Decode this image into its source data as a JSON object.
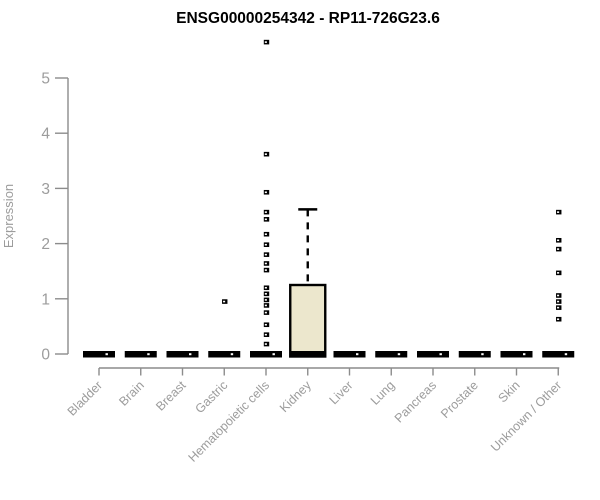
{
  "chart_data": {
    "type": "boxplot",
    "title": "ENSG00000254342 - RP11-726G23.6",
    "ylabel": "Expression",
    "xlabel": "",
    "ylim": [
      0,
      5
    ],
    "yticks": [
      0,
      1,
      2,
      3,
      4,
      5
    ],
    "grid": false,
    "legend": false,
    "categories": [
      "Bladder",
      "Brain",
      "Breast",
      "Gastric",
      "Hematopoietic cells",
      "Kidney",
      "Liver",
      "Lung",
      "Pancreas",
      "Prostate",
      "Skin",
      "Unknown / Other"
    ],
    "boxes": [
      {
        "category": "Bladder",
        "q1": 0,
        "median": 0,
        "q3": 0,
        "whisker_low": 0,
        "whisker_high": 0,
        "outliers": []
      },
      {
        "category": "Brain",
        "q1": 0,
        "median": 0,
        "q3": 0,
        "whisker_low": 0,
        "whisker_high": 0,
        "outliers": []
      },
      {
        "category": "Breast",
        "q1": 0,
        "median": 0,
        "q3": 0,
        "whisker_low": 0,
        "whisker_high": 0,
        "outliers": []
      },
      {
        "category": "Gastric",
        "q1": 0,
        "median": 0,
        "q3": 0,
        "whisker_low": 0,
        "whisker_high": 0,
        "outliers": [
          0.95
        ]
      },
      {
        "category": "Hematopoietic cells",
        "q1": 0,
        "median": 0,
        "q3": 0,
        "whisker_low": 0,
        "whisker_high": 0,
        "outliers": [
          5.65,
          3.62,
          2.93,
          2.57,
          2.44,
          2.17,
          1.98,
          1.8,
          1.64,
          1.52,
          1.2,
          1.09,
          0.98,
          0.88,
          0.75,
          0.53,
          0.35,
          0.18
        ]
      },
      {
        "category": "Kidney",
        "q1": 0,
        "median": 0,
        "q3": 1.25,
        "whisker_low": 0,
        "whisker_high": 2.62,
        "outliers": []
      },
      {
        "category": "Liver",
        "q1": 0,
        "median": 0,
        "q3": 0,
        "whisker_low": 0,
        "whisker_high": 0,
        "outliers": []
      },
      {
        "category": "Lung",
        "q1": 0,
        "median": 0,
        "q3": 0,
        "whisker_low": 0,
        "whisker_high": 0,
        "outliers": []
      },
      {
        "category": "Pancreas",
        "q1": 0,
        "median": 0,
        "q3": 0,
        "whisker_low": 0,
        "whisker_high": 0,
        "outliers": []
      },
      {
        "category": "Prostate",
        "q1": 0,
        "median": 0,
        "q3": 0,
        "whisker_low": 0,
        "whisker_high": 0,
        "outliers": []
      },
      {
        "category": "Skin",
        "q1": 0,
        "median": 0,
        "q3": 0,
        "whisker_low": 0,
        "whisker_high": 0,
        "outliers": []
      },
      {
        "category": "Unknown / Other",
        "q1": 0,
        "median": 0,
        "q3": 0,
        "whisker_low": 0,
        "whisker_high": 0,
        "outliers": [
          2.57,
          2.06,
          1.9,
          1.47,
          1.06,
          0.95,
          0.84,
          0.63
        ]
      }
    ],
    "colors": {
      "box_fill": "#ece7cd",
      "box_border": "#000000",
      "marker": "#000000",
      "axis": "#8c8c8c",
      "tick_label": "#9c9c9c",
      "title": "#000000"
    }
  }
}
